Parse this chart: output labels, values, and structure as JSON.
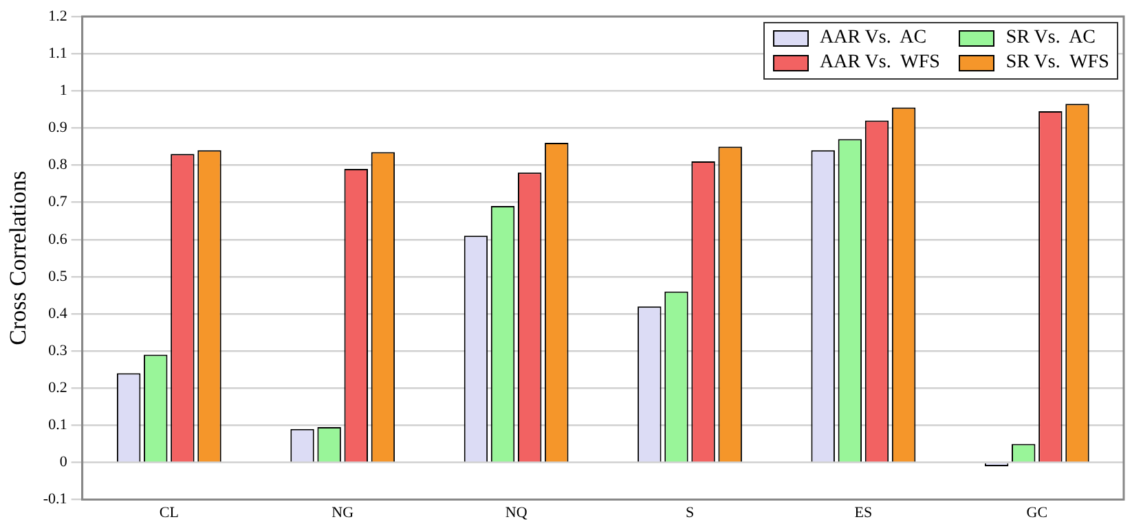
{
  "chart_data": {
    "type": "bar",
    "ylabel": "Cross Correlations",
    "categories": [
      "CL",
      "NG",
      "NQ",
      "S",
      "ES",
      "GC"
    ],
    "series": [
      {
        "name": "AAR Vs.  AC",
        "color": "#dcdcf5",
        "values": [
          0.24,
          0.09,
          0.61,
          0.42,
          0.84,
          -0.01
        ]
      },
      {
        "name": "SR Vs.  AC",
        "color": "#99f599",
        "values": [
          0.29,
          0.095,
          0.69,
          0.46,
          0.87,
          0.05
        ]
      },
      {
        "name": "AAR Vs.  WFS",
        "color": "#f26262",
        "values": [
          0.83,
          0.79,
          0.78,
          0.81,
          0.92,
          0.945
        ]
      },
      {
        "name": "SR Vs.  WFS",
        "color": "#f5962a",
        "values": [
          0.84,
          0.835,
          0.86,
          0.85,
          0.955,
          0.965
        ]
      }
    ],
    "ylim": [
      -0.1,
      1.2
    ],
    "yticks": [
      -0.1,
      0,
      0.1,
      0.2,
      0.3,
      0.4,
      0.5,
      0.6,
      0.7,
      0.8,
      0.9,
      1,
      1.1,
      1.2
    ],
    "grid": "y",
    "legend": "top right"
  }
}
